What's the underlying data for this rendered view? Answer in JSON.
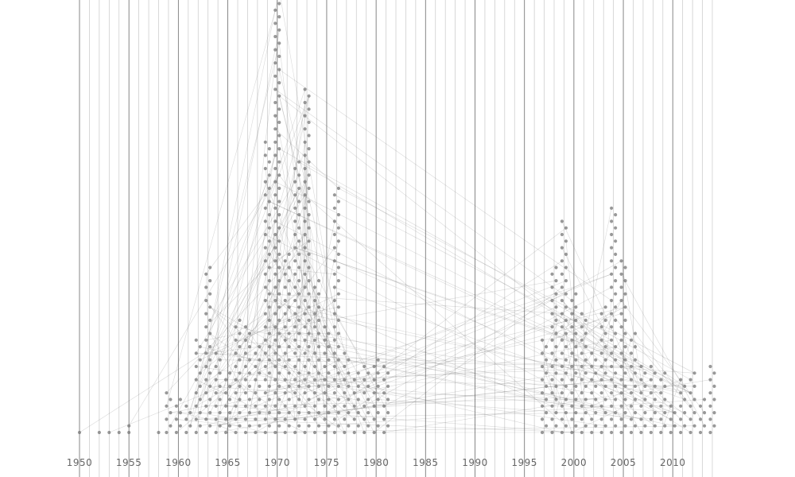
{
  "chart_data": {
    "type": "scatter",
    "title": "",
    "xlabel": "",
    "ylabel": "",
    "xlim": [
      1950,
      2014
    ],
    "x_ticks": [
      "1950",
      "1955",
      "1960",
      "1965",
      "1970",
      "1975",
      "1980",
      "1985",
      "1990",
      "1995",
      "2000",
      "2005",
      "2010"
    ],
    "grid": "vertical lines at every year",
    "colors": {
      "dot": "#777777",
      "link": "#555555",
      "major_grid": "#7a7a7a",
      "minor_grid": "#c8c8c8"
    },
    "points_per_year": [
      [
        1950,
        1
      ],
      [
        1952,
        1
      ],
      [
        1953,
        1
      ],
      [
        1954,
        1
      ],
      [
        1955,
        2
      ],
      [
        1958,
        1
      ],
      [
        1959,
        7
      ],
      [
        1960,
        6
      ],
      [
        1961,
        5
      ],
      [
        1962,
        15
      ],
      [
        1963,
        26
      ],
      [
        1964,
        13
      ],
      [
        1965,
        10
      ],
      [
        1966,
        18
      ],
      [
        1967,
        17
      ],
      [
        1968,
        14
      ],
      [
        1969,
        45
      ],
      [
        1970,
        68
      ],
      [
        1971,
        28
      ],
      [
        1972,
        42
      ],
      [
        1973,
        53
      ],
      [
        1974,
        24
      ],
      [
        1975,
        17
      ],
      [
        1976,
        38
      ],
      [
        1977,
        13
      ],
      [
        1978,
        10
      ],
      [
        1979,
        11
      ],
      [
        1980,
        12
      ],
      [
        1981,
        11
      ],
      [
        1997,
        15
      ],
      [
        1998,
        26
      ],
      [
        1999,
        33
      ],
      [
        2000,
        22
      ],
      [
        2001,
        19
      ],
      [
        2002,
        13
      ],
      [
        2003,
        20
      ],
      [
        2004,
        35
      ],
      [
        2005,
        27
      ],
      [
        2006,
        16
      ],
      [
        2007,
        11
      ],
      [
        2008,
        11
      ],
      [
        2009,
        10
      ],
      [
        2010,
        5
      ],
      [
        2011,
        9
      ],
      [
        2012,
        10
      ],
      [
        2013,
        6
      ],
      [
        2014,
        11
      ]
    ]
  }
}
